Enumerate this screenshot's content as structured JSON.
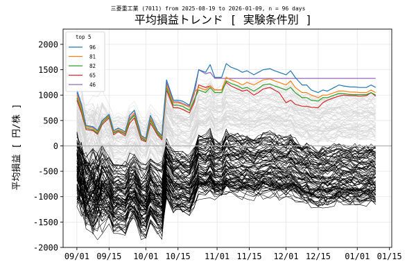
{
  "figure": {
    "suptitle": "三菱重工業 (7011) from 2025-08-19 to 2026-01-09, n = 96 days",
    "title": "平均損益トレンド [ 実験条件別 ]",
    "ylabel": "平均損益 [ 円/株 ]"
  },
  "chart_data": {
    "type": "line",
    "x_ticks": [
      "09/01",
      "09/15",
      "10/01",
      "10/15",
      "11/01",
      "11/15",
      "12/01",
      "12/15",
      "01/01",
      "01/15"
    ],
    "x_tick_dates": [
      "2025-09-01",
      "2025-09-15",
      "2025-10-01",
      "2025-10-15",
      "2025-11-01",
      "2025-11-15",
      "2025-12-01",
      "2025-12-15",
      "2026-01-01",
      "2026-01-15"
    ],
    "xlim": [
      "2025-08-26",
      "2026-01-16"
    ],
    "ylim": [
      -2000,
      2300
    ],
    "y_ticks": [
      -2000,
      -1500,
      -1000,
      -500,
      0,
      500,
      1000,
      1500,
      2000
    ],
    "grid": true,
    "zero_line": true,
    "legend": {
      "title": "top 5",
      "placement": "top-left"
    },
    "x_dates": [
      "2025-09-01",
      "2025-09-03",
      "2025-09-05",
      "2025-09-08",
      "2025-09-10",
      "2025-09-12",
      "2025-09-15",
      "2025-09-17",
      "2025-09-19",
      "2025-09-22",
      "2025-09-24",
      "2025-09-26",
      "2025-09-29",
      "2025-10-01",
      "2025-10-03",
      "2025-10-06",
      "2025-10-08",
      "2025-10-10",
      "2025-10-13",
      "2025-10-15",
      "2025-10-17",
      "2025-10-20",
      "2025-10-22",
      "2025-10-24",
      "2025-10-27",
      "2025-10-29",
      "2025-10-31",
      "2025-11-03",
      "2025-11-05",
      "2025-11-07",
      "2025-11-10",
      "2025-11-12",
      "2025-11-14",
      "2025-11-17",
      "2025-11-19",
      "2025-11-21",
      "2025-11-24",
      "2025-11-26",
      "2025-11-28",
      "2025-12-01",
      "2025-12-03",
      "2025-12-05",
      "2025-12-08",
      "2025-12-10",
      "2025-12-12",
      "2025-12-15",
      "2025-12-17",
      "2025-12-19",
      "2025-12-22",
      "2025-12-24",
      "2025-12-26",
      "2025-12-29",
      "2025-12-31",
      "2026-01-02",
      "2026-01-05",
      "2026-01-07",
      "2026-01-09"
    ],
    "series": [
      {
        "name": "96",
        "color": "#1f77b4",
        "values": [
          1100,
          820,
          400,
          380,
          300,
          500,
          620,
          300,
          350,
          280,
          600,
          700,
          200,
          150,
          600,
          300,
          200,
          1300,
          900,
          900,
          880,
          800,
          1100,
          1500,
          1450,
          1600,
          1350,
          1350,
          1620,
          1550,
          1500,
          1450,
          1480,
          1400,
          1450,
          1500,
          1520,
          1480,
          1450,
          1400,
          1480,
          1350,
          1200,
          1200,
          1100,
          1050,
          1100,
          1080,
          1150,
          1200,
          1180,
          1160,
          1160,
          1150,
          1150,
          1200,
          1150
        ]
      },
      {
        "name": "81",
        "color": "#ff7f0e",
        "values": [
          1000,
          750,
          380,
          350,
          280,
          480,
          600,
          280,
          320,
          260,
          550,
          650,
          180,
          130,
          550,
          280,
          180,
          1200,
          850,
          850,
          820,
          760,
          1050,
          1150,
          1100,
          1180,
          1100,
          1100,
          1350,
          1300,
          1250,
          1200,
          1250,
          1200,
          1250,
          1300,
          1320,
          1280,
          1250,
          1200,
          1280,
          1150,
          1050,
          1050,
          1000,
          950,
          1000,
          1000,
          1050,
          1080,
          1080,
          1060,
          1060,
          1050,
          1050,
          1100,
          1050
        ]
      },
      {
        "name": "82",
        "color": "#2ca02c",
        "values": [
          950,
          700,
          350,
          320,
          250,
          450,
          580,
          250,
          300,
          230,
          500,
          600,
          150,
          100,
          500,
          250,
          150,
          1150,
          800,
          800,
          780,
          700,
          900,
          1100,
          1050,
          1150,
          1050,
          1050,
          1280,
          1230,
          1180,
          1130,
          1150,
          1080,
          1130,
          1200,
          1220,
          1180,
          1150,
          1100,
          1150,
          1050,
          950,
          950,
          900,
          880,
          950,
          950,
          1000,
          1030,
          1030,
          1010,
          1010,
          1010,
          1010,
          1050,
          1000
        ]
      },
      {
        "name": "65",
        "color": "#d62728",
        "values": [
          900,
          650,
          320,
          300,
          230,
          420,
          550,
          220,
          280,
          200,
          450,
          550,
          120,
          80,
          450,
          220,
          120,
          1100,
          750,
          750,
          720,
          650,
          850,
          1200,
          1150,
          1180,
          1100,
          1100,
          1250,
          1180,
          1120,
          1080,
          1100,
          1000,
          1050,
          1120,
          1150,
          1100,
          1050,
          850,
          900,
          820,
          780,
          780,
          760,
          750,
          850,
          900,
          950,
          980,
          1000,
          990,
          990,
          980,
          990,
          1050,
          980
        ]
      },
      {
        "name": "46",
        "color": "#9467bd",
        "values": [
          1050,
          780,
          380,
          360,
          270,
          480,
          600,
          260,
          320,
          240,
          520,
          620,
          160,
          110,
          520,
          260,
          160,
          1250,
          870,
          870,
          840,
          780,
          1000,
          1500,
          1420,
          1450,
          1330,
          1330,
          1330,
          1330,
          1330,
          1330,
          1330,
          1330,
          1330,
          1330,
          1330,
          1330,
          1330,
          1330,
          1330,
          1330,
          1330,
          1330,
          1330,
          1330,
          1330,
          1330,
          1330,
          1330,
          1330,
          1330,
          1330,
          1330,
          1330,
          1330,
          1330
        ]
      }
    ]
  }
}
